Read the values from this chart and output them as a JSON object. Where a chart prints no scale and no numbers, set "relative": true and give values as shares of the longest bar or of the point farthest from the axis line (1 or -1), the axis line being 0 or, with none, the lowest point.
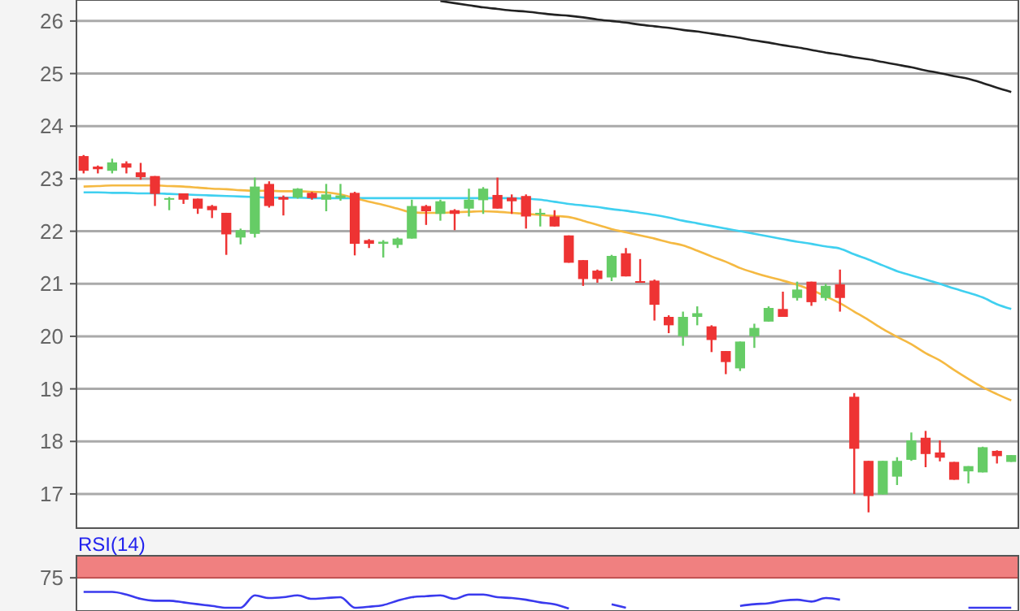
{
  "chart_data": [
    {
      "type": "candlestick",
      "categories": [
        null,
        null,
        null,
        null,
        null,
        null,
        null,
        null,
        null,
        null,
        null,
        null,
        null,
        null,
        null,
        null,
        null,
        null,
        null,
        null,
        null,
        null,
        null,
        null,
        null,
        null,
        null,
        null,
        null,
        null,
        null,
        null,
        null,
        null,
        null,
        null,
        null,
        null,
        null,
        null,
        null,
        null,
        null,
        null,
        null,
        null,
        null,
        null,
        null,
        null,
        null,
        null,
        null,
        null,
        null,
        null,
        null,
        null,
        null,
        null,
        null,
        null,
        null,
        null,
        null,
        null
      ],
      "ohlc": [
        [
          23.43,
          23.45,
          23.1,
          23.15
        ],
        [
          23.23,
          23.25,
          23.1,
          23.18
        ],
        [
          23.15,
          23.38,
          23.1,
          23.31
        ],
        [
          23.29,
          23.33,
          23.1,
          23.21
        ],
        [
          23.12,
          23.3,
          22.98,
          23.03
        ],
        [
          23.05,
          23.05,
          22.48,
          22.71
        ],
        [
          22.6,
          22.65,
          22.4,
          22.63
        ],
        [
          22.72,
          22.72,
          22.52,
          22.6
        ],
        [
          22.62,
          22.62,
          22.33,
          22.43
        ],
        [
          22.48,
          22.5,
          22.25,
          22.4
        ],
        [
          22.35,
          22.35,
          21.55,
          21.94
        ],
        [
          21.88,
          22.05,
          21.75,
          22.02
        ],
        [
          21.95,
          23.02,
          21.88,
          22.85
        ],
        [
          22.9,
          22.95,
          22.45,
          22.48
        ],
        [
          22.65,
          22.68,
          22.3,
          22.6
        ],
        [
          22.64,
          22.82,
          22.62,
          22.81
        ],
        [
          22.73,
          22.75,
          22.6,
          22.63
        ],
        [
          22.6,
          22.9,
          22.38,
          22.7
        ],
        [
          22.63,
          22.9,
          22.58,
          22.68
        ],
        [
          22.73,
          22.75,
          21.54,
          21.76
        ],
        [
          21.83,
          21.85,
          21.68,
          21.76
        ],
        [
          21.76,
          21.83,
          21.5,
          21.8
        ],
        [
          21.74,
          21.88,
          21.68,
          21.86
        ],
        [
          21.86,
          22.6,
          21.86,
          22.48
        ],
        [
          22.48,
          22.5,
          22.12,
          22.38
        ],
        [
          22.33,
          22.6,
          22.2,
          22.57
        ],
        [
          22.4,
          22.42,
          22.02,
          22.33
        ],
        [
          22.43,
          22.81,
          22.28,
          22.6
        ],
        [
          22.59,
          22.84,
          22.33,
          22.81
        ],
        [
          22.69,
          23.02,
          22.43,
          22.43
        ],
        [
          22.64,
          22.7,
          22.33,
          22.57
        ],
        [
          22.67,
          22.7,
          22.05,
          22.28
        ],
        [
          22.33,
          22.43,
          22.09,
          22.35
        ],
        [
          22.28,
          22.4,
          22.09,
          22.09
        ],
        [
          21.92,
          21.92,
          21.4,
          21.4
        ],
        [
          21.45,
          21.45,
          20.96,
          21.09
        ],
        [
          21.25,
          21.27,
          21.02,
          21.09
        ],
        [
          21.12,
          21.55,
          21.05,
          21.53
        ],
        [
          21.58,
          21.68,
          21.14,
          21.14
        ],
        [
          21.05,
          21.47,
          21.04,
          21.04
        ],
        [
          21.06,
          21.08,
          20.3,
          20.6
        ],
        [
          20.37,
          20.4,
          20.06,
          20.21
        ],
        [
          20.0,
          20.47,
          19.82,
          20.37
        ],
        [
          20.37,
          20.57,
          20.21,
          20.44
        ],
        [
          20.19,
          20.21,
          19.7,
          19.93
        ],
        [
          19.72,
          19.72,
          19.28,
          19.51
        ],
        [
          19.39,
          19.9,
          19.34,
          19.9
        ],
        [
          20.0,
          20.24,
          19.78,
          20.16
        ],
        [
          20.28,
          20.57,
          20.28,
          20.54
        ],
        [
          20.52,
          20.85,
          20.37,
          20.37
        ],
        [
          20.73,
          21.04,
          20.68,
          20.89
        ],
        [
          21.04,
          21.04,
          20.58,
          20.65
        ],
        [
          20.73,
          21.0,
          20.68,
          20.96
        ],
        [
          20.99,
          21.27,
          20.47,
          20.73
        ],
        [
          18.85,
          18.92,
          17.0,
          17.86
        ],
        [
          17.63,
          17.63,
          16.65,
          16.96
        ],
        [
          16.99,
          17.63,
          16.99,
          17.63
        ],
        [
          17.33,
          17.7,
          17.17,
          17.63
        ],
        [
          17.65,
          18.17,
          17.63,
          18.02
        ],
        [
          18.07,
          18.2,
          17.51,
          17.76
        ],
        [
          17.79,
          18.02,
          17.62,
          17.69
        ],
        [
          17.61,
          17.61,
          17.27,
          17.27
        ],
        [
          17.43,
          17.53,
          17.2,
          17.53
        ],
        [
          17.41,
          17.9,
          17.41,
          17.89
        ],
        [
          17.82,
          17.83,
          17.58,
          17.72
        ],
        [
          17.61,
          17.74,
          17.61,
          17.74
        ]
      ],
      "colors": [
        "#ee3333",
        "#ee3333",
        "#66cc66",
        "#ee3333",
        "#ee3333",
        "#ee3333",
        "#66cc66",
        "#ee3333",
        "#ee3333",
        "#ee3333",
        "#ee3333",
        "#66cc66",
        "#66cc66",
        "#ee3333",
        "#ee3333",
        "#66cc66",
        "#ee3333",
        "#66cc66",
        "#66cc66",
        "#ee3333",
        "#ee3333",
        "#66cc66",
        "#66cc66",
        "#66cc66",
        "#ee3333",
        "#66cc66",
        "#ee3333",
        "#66cc66",
        "#66cc66",
        "#ee3333",
        "#ee3333",
        "#ee3333",
        "#66cc66",
        "#ee3333",
        "#ee3333",
        "#ee3333",
        "#ee3333",
        "#66cc66",
        "#ee3333",
        "#ee3333",
        "#ee3333",
        "#ee3333",
        "#66cc66",
        "#66cc66",
        "#ee3333",
        "#ee3333",
        "#66cc66",
        "#66cc66",
        "#66cc66",
        "#ee3333",
        "#66cc66",
        "#ee3333",
        "#66cc66",
        "#ee3333",
        "#ee3333",
        "#ee3333",
        "#66cc66",
        "#66cc66",
        "#66cc66",
        "#ee3333",
        "#ee3333",
        "#ee3333",
        "#66cc66",
        "#66cc66",
        "#ee3333",
        "#66cc66"
      ],
      "series": [
        {
          "type": "line",
          "color": "#222222",
          "values": [
            null,
            null,
            null,
            null,
            null,
            null,
            null,
            null,
            null,
            null,
            null,
            null,
            null,
            null,
            null,
            null,
            null,
            null,
            null,
            null,
            null,
            null,
            null,
            null,
            null,
            26.38,
            26.34,
            26.3,
            26.26,
            26.23,
            26.2,
            26.18,
            26.15,
            26.12,
            26.1,
            26.07,
            26.03,
            26.0,
            25.97,
            25.93,
            25.9,
            25.87,
            25.83,
            25.8,
            25.76,
            25.72,
            25.68,
            25.63,
            25.59,
            25.54,
            25.5,
            25.45,
            25.4,
            25.36,
            25.31,
            25.27,
            25.22,
            25.17,
            25.12,
            25.06,
            25.01,
            24.95,
            24.9,
            24.82,
            24.73,
            24.65
          ]
        },
        {
          "type": "line",
          "color": "#40d0f0",
          "values": [
            22.74,
            22.74,
            22.73,
            22.73,
            22.72,
            22.72,
            22.71,
            22.7,
            22.69,
            22.68,
            22.67,
            22.66,
            22.65,
            22.64,
            22.64,
            22.64,
            22.63,
            22.63,
            22.63,
            22.63,
            22.63,
            22.63,
            22.63,
            22.63,
            22.63,
            22.63,
            22.63,
            22.63,
            22.63,
            22.63,
            22.63,
            22.62,
            22.6,
            22.56,
            22.52,
            22.49,
            22.46,
            22.42,
            22.39,
            22.35,
            22.31,
            22.26,
            22.2,
            22.15,
            22.1,
            22.05,
            22.0,
            21.95,
            21.9,
            21.85,
            21.8,
            21.76,
            21.71,
            21.67,
            21.56,
            21.46,
            21.35,
            21.24,
            21.16,
            21.08,
            21.0,
            20.91,
            20.83,
            20.74,
            20.61,
            20.52
          ]
        },
        {
          "type": "line",
          "color": "#f5b942",
          "values": [
            22.85,
            22.86,
            22.87,
            22.87,
            22.87,
            22.87,
            22.86,
            22.85,
            22.83,
            22.81,
            22.8,
            22.78,
            22.77,
            22.77,
            22.76,
            22.76,
            22.75,
            22.74,
            22.7,
            22.63,
            22.56,
            22.5,
            22.43,
            22.36,
            22.35,
            22.35,
            22.36,
            22.37,
            22.38,
            22.37,
            22.35,
            22.33,
            22.31,
            22.29,
            22.27,
            22.2,
            22.12,
            22.04,
            21.98,
            21.92,
            21.86,
            21.79,
            21.73,
            21.63,
            21.52,
            21.42,
            21.3,
            21.21,
            21.13,
            21.06,
            20.98,
            20.88,
            20.76,
            20.63,
            20.47,
            20.31,
            20.14,
            19.99,
            19.85,
            19.68,
            19.54,
            19.36,
            19.19,
            19.03,
            18.9,
            18.78
          ]
        }
      ],
      "ylim": [
        16.35,
        26.4
      ],
      "yticks": [
        17,
        18,
        19,
        20,
        21,
        22,
        23,
        24,
        25,
        26
      ],
      "grid": "y",
      "tick_labels": "y"
    },
    {
      "type": "line",
      "title": "RSI(14)",
      "categories": [
        null,
        null,
        null,
        null,
        null,
        null,
        null,
        null,
        null,
        null,
        null,
        null,
        null,
        null,
        null,
        null,
        null,
        null,
        null,
        null,
        null,
        null,
        null,
        null,
        null,
        null,
        null,
        null,
        null,
        null,
        null,
        null,
        null,
        null,
        null,
        null,
        null,
        null,
        null,
        null,
        null,
        null,
        null,
        null,
        null,
        null,
        null,
        null,
        null,
        null,
        null,
        null,
        null,
        null,
        null,
        null,
        null,
        null,
        null,
        null,
        null,
        null,
        null,
        null,
        null,
        null
      ],
      "series": [
        {
          "color": "#3a3aee",
          "values": [
            1,
            1,
            1,
            0.84,
            0.58,
            0.47,
            0.47,
            0.37,
            0.26,
            0.16,
            0.05,
            0.05,
            0.79,
            0.63,
            0.68,
            0.79,
            0.58,
            0.63,
            0.68,
            0.05,
            0.11,
            0.21,
            0.47,
            0.68,
            0.74,
            0.79,
            0.58,
            0.84,
            0.84,
            0.68,
            0.63,
            0.53,
            0.37,
            0.26,
            0,
            null,
            null,
            0.26,
            0.05,
            null,
            null,
            null,
            null,
            null,
            null,
            null,
            0.16,
            0.26,
            0.32,
            0.47,
            0.53,
            0.42,
            0.63,
            0.53,
            null,
            null,
            null,
            null,
            null,
            null,
            null,
            null,
            0.05,
            0.05,
            0.05,
            0.05
          ]
        }
      ],
      "relative": true,
      "bands": [
        {
          "axis": "y",
          "from": 1.84,
          "to": 3.16,
          "color": "#f08080",
          "label": "75"
        }
      ],
      "tick_labels": false
    }
  ]
}
